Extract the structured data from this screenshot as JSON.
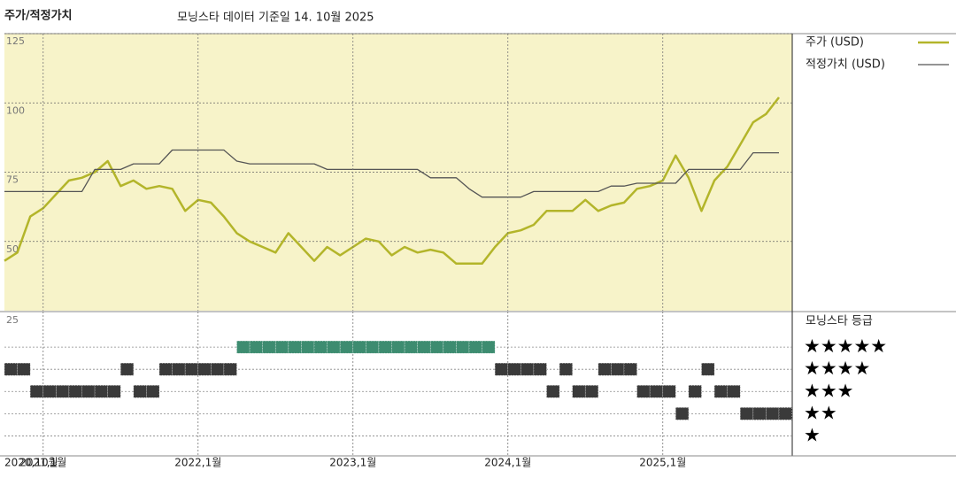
{
  "chart_data": [
    {
      "type": "line",
      "title": "주가/적정가치",
      "subtitle": "모닝스타 데이터 기준일 14. 10월 2025",
      "x": [
        "2020-10",
        "2020-11",
        "2020-12",
        "2021-01",
        "2021-02",
        "2021-03",
        "2021-04",
        "2021-05",
        "2021-06",
        "2021-07",
        "2021-08",
        "2021-09",
        "2021-10",
        "2021-11",
        "2021-12",
        "2022-01",
        "2022-02",
        "2022-03",
        "2022-04",
        "2022-05",
        "2022-06",
        "2022-07",
        "2022-08",
        "2022-09",
        "2022-10",
        "2022-11",
        "2022-12",
        "2023-01",
        "2023-02",
        "2023-03",
        "2023-04",
        "2023-05",
        "2023-06",
        "2023-07",
        "2023-08",
        "2023-09",
        "2023-10",
        "2023-11",
        "2023-12",
        "2024-01",
        "2024-02",
        "2024-03",
        "2024-04",
        "2024-05",
        "2024-06",
        "2024-07",
        "2024-08",
        "2024-09",
        "2024-10",
        "2024-11",
        "2024-12",
        "2025-01",
        "2025-02",
        "2025-03",
        "2025-04",
        "2025-05",
        "2025-06",
        "2025-07",
        "2025-08",
        "2025-09",
        "2025-10"
      ],
      "series": [
        {
          "name": "주가 (USD)",
          "color": "#b3b52a",
          "width": 2.5,
          "values": [
            43,
            46,
            59,
            62,
            67,
            72,
            73,
            75,
            79,
            70,
            72,
            69,
            70,
            69,
            61,
            65,
            64,
            59,
            53,
            50,
            48,
            46,
            53,
            48,
            43,
            48,
            45,
            48,
            51,
            50,
            45,
            48,
            46,
            47,
            46,
            42,
            42,
            42,
            48,
            53,
            54,
            56,
            61,
            61,
            61,
            65,
            61,
            63,
            64,
            69,
            70,
            72,
            81,
            73,
            61,
            72,
            77,
            85,
            93,
            96,
            102
          ]
        },
        {
          "name": "적정가치 (USD)",
          "color": "#555555",
          "width": 1.3,
          "values": [
            68,
            68,
            68,
            68,
            68,
            68,
            68,
            76,
            76,
            76,
            78,
            78,
            78,
            83,
            83,
            83,
            83,
            83,
            79,
            78,
            78,
            78,
            78,
            78,
            78,
            76,
            76,
            76,
            76,
            76,
            76,
            76,
            76,
            73,
            73,
            73,
            69,
            66,
            66,
            66,
            66,
            68,
            68,
            68,
            68,
            68,
            68,
            70,
            70,
            71,
            71,
            71,
            71,
            76,
            76,
            76,
            76,
            76,
            82,
            82,
            82
          ]
        }
      ],
      "xlim": [
        "2020-10",
        "2025-10"
      ],
      "ylim": [
        25,
        125
      ],
      "yticks": [
        50,
        75,
        100,
        125
      ],
      "background": "#f7f3c9",
      "grid": true
    },
    {
      "type": "rating",
      "title": "모닝스타 등급",
      "corner_label": "25",
      "x": [
        "2020-10",
        "2020-11",
        "2020-12",
        "2021-01",
        "2021-02",
        "2021-03",
        "2021-04",
        "2021-05",
        "2021-06",
        "2021-07",
        "2021-08",
        "2021-09",
        "2021-10",
        "2021-11",
        "2021-12",
        "2022-01",
        "2022-02",
        "2022-03",
        "2022-04",
        "2022-05",
        "2022-06",
        "2022-07",
        "2022-08",
        "2022-09",
        "2022-10",
        "2022-11",
        "2022-12",
        "2023-01",
        "2023-02",
        "2023-03",
        "2023-04",
        "2023-05",
        "2023-06",
        "2023-07",
        "2023-08",
        "2023-09",
        "2023-10",
        "2023-11",
        "2023-12",
        "2024-01",
        "2024-02",
        "2024-03",
        "2024-04",
        "2024-05",
        "2024-06",
        "2024-07",
        "2024-08",
        "2024-09",
        "2024-10",
        "2024-11",
        "2024-12",
        "2025-01",
        "2025-02",
        "2025-03",
        "2025-04",
        "2025-05",
        "2025-06",
        "2025-07",
        "2025-08",
        "2025-09",
        "2025-10"
      ],
      "values": [
        4,
        4,
        3,
        3,
        3,
        3,
        3,
        3,
        3,
        4,
        3,
        3,
        4,
        4,
        4,
        4,
        4,
        4,
        5,
        5,
        5,
        5,
        5,
        5,
        5,
        5,
        5,
        5,
        5,
        5,
        5,
        5,
        5,
        5,
        5,
        5,
        5,
        5,
        4,
        4,
        4,
        4,
        3,
        4,
        3,
        3,
        4,
        4,
        4,
        3,
        3,
        3,
        2,
        3,
        4,
        3,
        3,
        2,
        2,
        2,
        2
      ],
      "colors": {
        "5": "#3d8c70",
        "other": "#3a3a3a"
      },
      "xlim": [
        "2020-10",
        "2025-10"
      ],
      "ylim": [
        0.1,
        6.6
      ],
      "yticks": [
        {
          "value": 5,
          "label": "★★★★★"
        },
        {
          "value": 4,
          "label": "★★★★"
        },
        {
          "value": 3,
          "label": "★★★"
        },
        {
          "value": 2,
          "label": "★★"
        },
        {
          "value": 1,
          "label": "★"
        }
      ],
      "xticks": [
        {
          "value": "2020-10",
          "label": "2020,10월"
        },
        {
          "value": "2021-01",
          "label": "2021,1월"
        },
        {
          "value": "2022-01",
          "label": "2022,1월"
        },
        {
          "value": "2023-01",
          "label": "2023,1월"
        },
        {
          "value": "2024-01",
          "label": "2024,1월"
        },
        {
          "value": "2025-01",
          "label": "2025,1월"
        }
      ]
    }
  ]
}
